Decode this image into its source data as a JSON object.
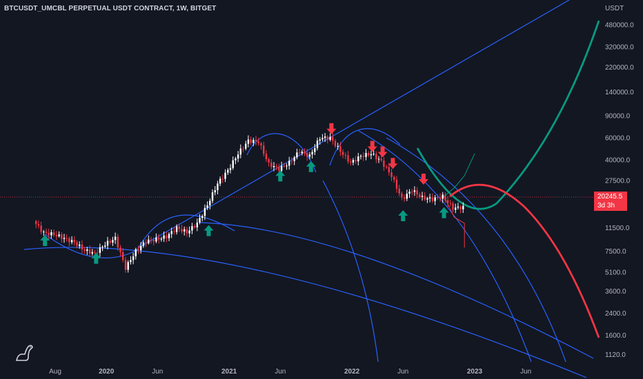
{
  "header": {
    "title": "BTCUSDT_UMCBL PERPETUAL USDT CONTRACT, 1W, BITGET"
  },
  "price_axis": {
    "currency": "USDT",
    "last_price": "20245.5",
    "countdown": "3d 3h"
  },
  "colors": {
    "background": "#131722",
    "bull_candle": "#ffffff",
    "bear_candle": "#f23645",
    "curve_blue": "#2962ff",
    "curve_teal": "#089981",
    "curve_red": "#f23645",
    "arrow_up": "#089981",
    "arrow_down": "#f23645"
  },
  "chart_data": {
    "type": "candlestick",
    "scale": "log",
    "y_tick_labels": [
      "480000.0",
      "320000.0",
      "220000.0",
      "140000.0",
      "90000.0",
      "60000.0",
      "40000.0",
      "27500.0",
      "20245.5",
      "11500.0",
      "7500.0",
      "5100.0",
      "3600.0",
      "2400.0",
      "1600.0",
      "1120.0"
    ],
    "y_tick_values": [
      480000,
      320000,
      220000,
      140000,
      90000,
      60000,
      40000,
      27500,
      20245.5,
      11500,
      7500,
      5100,
      3600,
      2400,
      1600,
      1120
    ],
    "x_tick_labels": [
      "Aug",
      "2020",
      "Jun",
      "2021",
      "Jun",
      "2022",
      "Jun",
      "2023",
      "Jun"
    ],
    "x_tick_values": [
      "2019-08",
      "2020-01",
      "2020-06",
      "2021-01",
      "2021-06",
      "2022-01",
      "2022-06",
      "2023-01",
      "2023-06"
    ],
    "current_price": 20245.5,
    "price_series": [
      [
        "2019-06",
        13000
      ],
      [
        "2019-07",
        10500
      ],
      [
        "2019-08",
        10200
      ],
      [
        "2019-09",
        9500
      ],
      [
        "2019-10",
        8800
      ],
      [
        "2019-11",
        7600
      ],
      [
        "2019-12",
        7200
      ],
      [
        "2020-01",
        8500
      ],
      [
        "2020-02",
        9500
      ],
      [
        "2020-03",
        5500
      ],
      [
        "2020-04",
        7500
      ],
      [
        "2020-05",
        9000
      ],
      [
        "2020-06",
        9300
      ],
      [
        "2020-07",
        9800
      ],
      [
        "2020-08",
        11500
      ],
      [
        "2020-09",
        10600
      ],
      [
        "2020-10",
        12500
      ],
      [
        "2020-11",
        17500
      ],
      [
        "2020-12",
        26000
      ],
      [
        "2021-01",
        33000
      ],
      [
        "2021-02",
        45000
      ],
      [
        "2021-03",
        57000
      ],
      [
        "2021-04",
        56000
      ],
      [
        "2021-05",
        37000
      ],
      [
        "2021-06",
        34000
      ],
      [
        "2021-07",
        38000
      ],
      [
        "2021-08",
        47000
      ],
      [
        "2021-09",
        43000
      ],
      [
        "2021-10",
        60000
      ],
      [
        "2021-11",
        60000
      ],
      [
        "2021-12",
        47000
      ],
      [
        "2022-01",
        38000
      ],
      [
        "2022-02",
        43000
      ],
      [
        "2022-03",
        45000
      ],
      [
        "2022-04",
        39000
      ],
      [
        "2022-05",
        30000
      ],
      [
        "2022-06",
        19500
      ],
      [
        "2022-07",
        23000
      ],
      [
        "2022-08",
        20000
      ],
      [
        "2022-09",
        19500
      ],
      [
        "2022-10",
        20500
      ],
      [
        "2022-11",
        16500
      ],
      [
        "2022-12",
        16800
      ]
    ],
    "projection_bull_path": [
      [
        "2022-10",
        20500
      ],
      [
        "2022-11",
        24000
      ],
      [
        "2022-12",
        30000
      ],
      [
        "2023-01",
        45000
      ]
    ],
    "projection_bear_path": [
      [
        "2022-10",
        20500
      ],
      [
        "2022-11",
        14000
      ],
      [
        "2022-12",
        12500
      ],
      [
        "2022-12",
        8000
      ]
    ],
    "annotations": {
      "up_arrows": [
        [
          "2019-07",
          9000
        ],
        [
          "2019-12",
          6500
        ],
        [
          "2020-11",
          10800
        ],
        [
          "2021-06",
          29500
        ],
        [
          "2021-09",
          35000
        ],
        [
          "2022-06",
          14200
        ],
        [
          "2022-10",
          15000
        ]
      ],
      "down_arrows": [
        [
          "2021-11",
          72000
        ],
        [
          "2022-03",
          52000
        ],
        [
          "2022-04",
          47000
        ],
        [
          "2022-05",
          38000
        ],
        [
          "2022-08",
          28500
        ]
      ]
    }
  }
}
